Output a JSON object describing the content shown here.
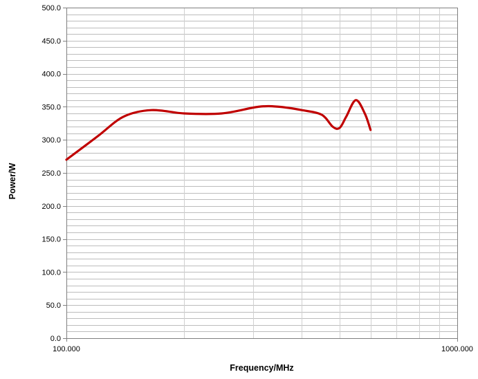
{
  "chart_data": {
    "type": "line",
    "title": "",
    "xlabel": "Frequency/MHz",
    "ylabel": "Power/W",
    "xscale": "log",
    "xlim": [
      100,
      1000
    ],
    "ylim": [
      0,
      500
    ],
    "x_tick_labels": [
      "100.000",
      "1000.000"
    ],
    "y_ticks": [
      0,
      50,
      100,
      150,
      200,
      250,
      300,
      350,
      400,
      450,
      500
    ],
    "y_tick_labels": [
      "0.0",
      "50.0",
      "100.0",
      "150.0",
      "200.0",
      "250.0",
      "300.0",
      "350.0",
      "400.0",
      "450.0",
      "500.0"
    ],
    "grid": true,
    "legend": "none",
    "series": [
      {
        "color": "#c00000",
        "x": [
          100,
          120,
          140,
          165,
          200,
          250,
          310,
          350,
          400,
          450,
          480,
          500,
          520,
          550,
          580,
          600
        ],
        "y": [
          270,
          305,
          335,
          345,
          340,
          340,
          350,
          350,
          345,
          338,
          320,
          318,
          335,
          360,
          340,
          315
        ]
      }
    ]
  }
}
